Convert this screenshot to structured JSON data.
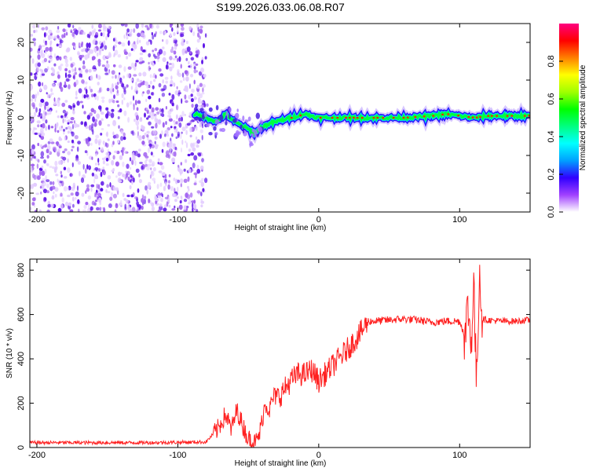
{
  "chart_data": [
    {
      "type": "heatmap",
      "title": "S199.2026.033.06.08.R07",
      "xlabel": "Height of straight line (km)",
      "ylabel": "Frequency (Hz)",
      "xlim": [
        -205,
        150
      ],
      "ylim": [
        -25,
        25
      ],
      "xticks": [
        -200,
        -100,
        0,
        100
      ],
      "yticks": [
        -20,
        -10,
        0,
        10,
        20
      ],
      "noise_region_end_x": -80,
      "signal_track": {
        "x": [
          -88,
          -80,
          -72,
          -66,
          -60,
          -55,
          -50,
          -46,
          -42,
          -38,
          -30,
          -20,
          -10,
          0,
          20,
          40,
          60,
          80,
          90,
          100,
          110,
          120,
          140,
          150
        ],
        "y": [
          1,
          0,
          -1,
          1,
          -1,
          -2,
          -3,
          -4,
          -3,
          -2,
          -1,
          0,
          1,
          0,
          0,
          0,
          0,
          0.5,
          1,
          0.5,
          0,
          0.5,
          0.5,
          0.5
        ]
      },
      "colorbar": {
        "label": "Normalized spectral amplitude",
        "range": [
          0,
          1
        ],
        "ticks": [
          "0.0",
          "0.2",
          "0.4",
          "0.6",
          "0.8"
        ],
        "colors": [
          "#ffffff",
          "#a040ff",
          "#3000ff",
          "#00a0ff",
          "#00ffff",
          "#00ff80",
          "#00ff00",
          "#a0ff00",
          "#ffff00",
          "#ff8000",
          "#ff0000",
          "#ff0080"
        ]
      }
    },
    {
      "type": "line",
      "xlabel": "Height of straight line (km)",
      "ylabel": "SNR (10 * v/v)",
      "xlim": [
        -205,
        150
      ],
      "ylim": [
        0,
        850
      ],
      "xticks": [
        -200,
        -100,
        0,
        100
      ],
      "yticks": [
        0,
        200,
        400,
        600,
        800
      ],
      "series": [
        {
          "name": "SNR",
          "color": "#ff2020",
          "x": [
            -205,
            -120,
            -80,
            -72,
            -66,
            -62,
            -58,
            -54,
            -50,
            -48,
            -45,
            -42,
            -38,
            -35,
            -32,
            -28,
            -20,
            -15,
            -10,
            -5,
            0,
            10,
            20,
            30,
            35,
            40,
            50,
            60,
            70,
            80,
            90,
            100,
            104,
            106,
            108,
            110,
            112,
            114,
            116,
            120,
            130,
            140,
            150
          ],
          "y": [
            22,
            22,
            25,
            80,
            150,
            80,
            170,
            100,
            40,
            30,
            20,
            60,
            200,
            170,
            230,
            230,
            300,
            330,
            330,
            350,
            300,
            370,
            440,
            520,
            570,
            570,
            575,
            580,
            575,
            565,
            570,
            570,
            500,
            650,
            450,
            750,
            260,
            820,
            580,
            575,
            570,
            570,
            575
          ]
        }
      ]
    }
  ]
}
